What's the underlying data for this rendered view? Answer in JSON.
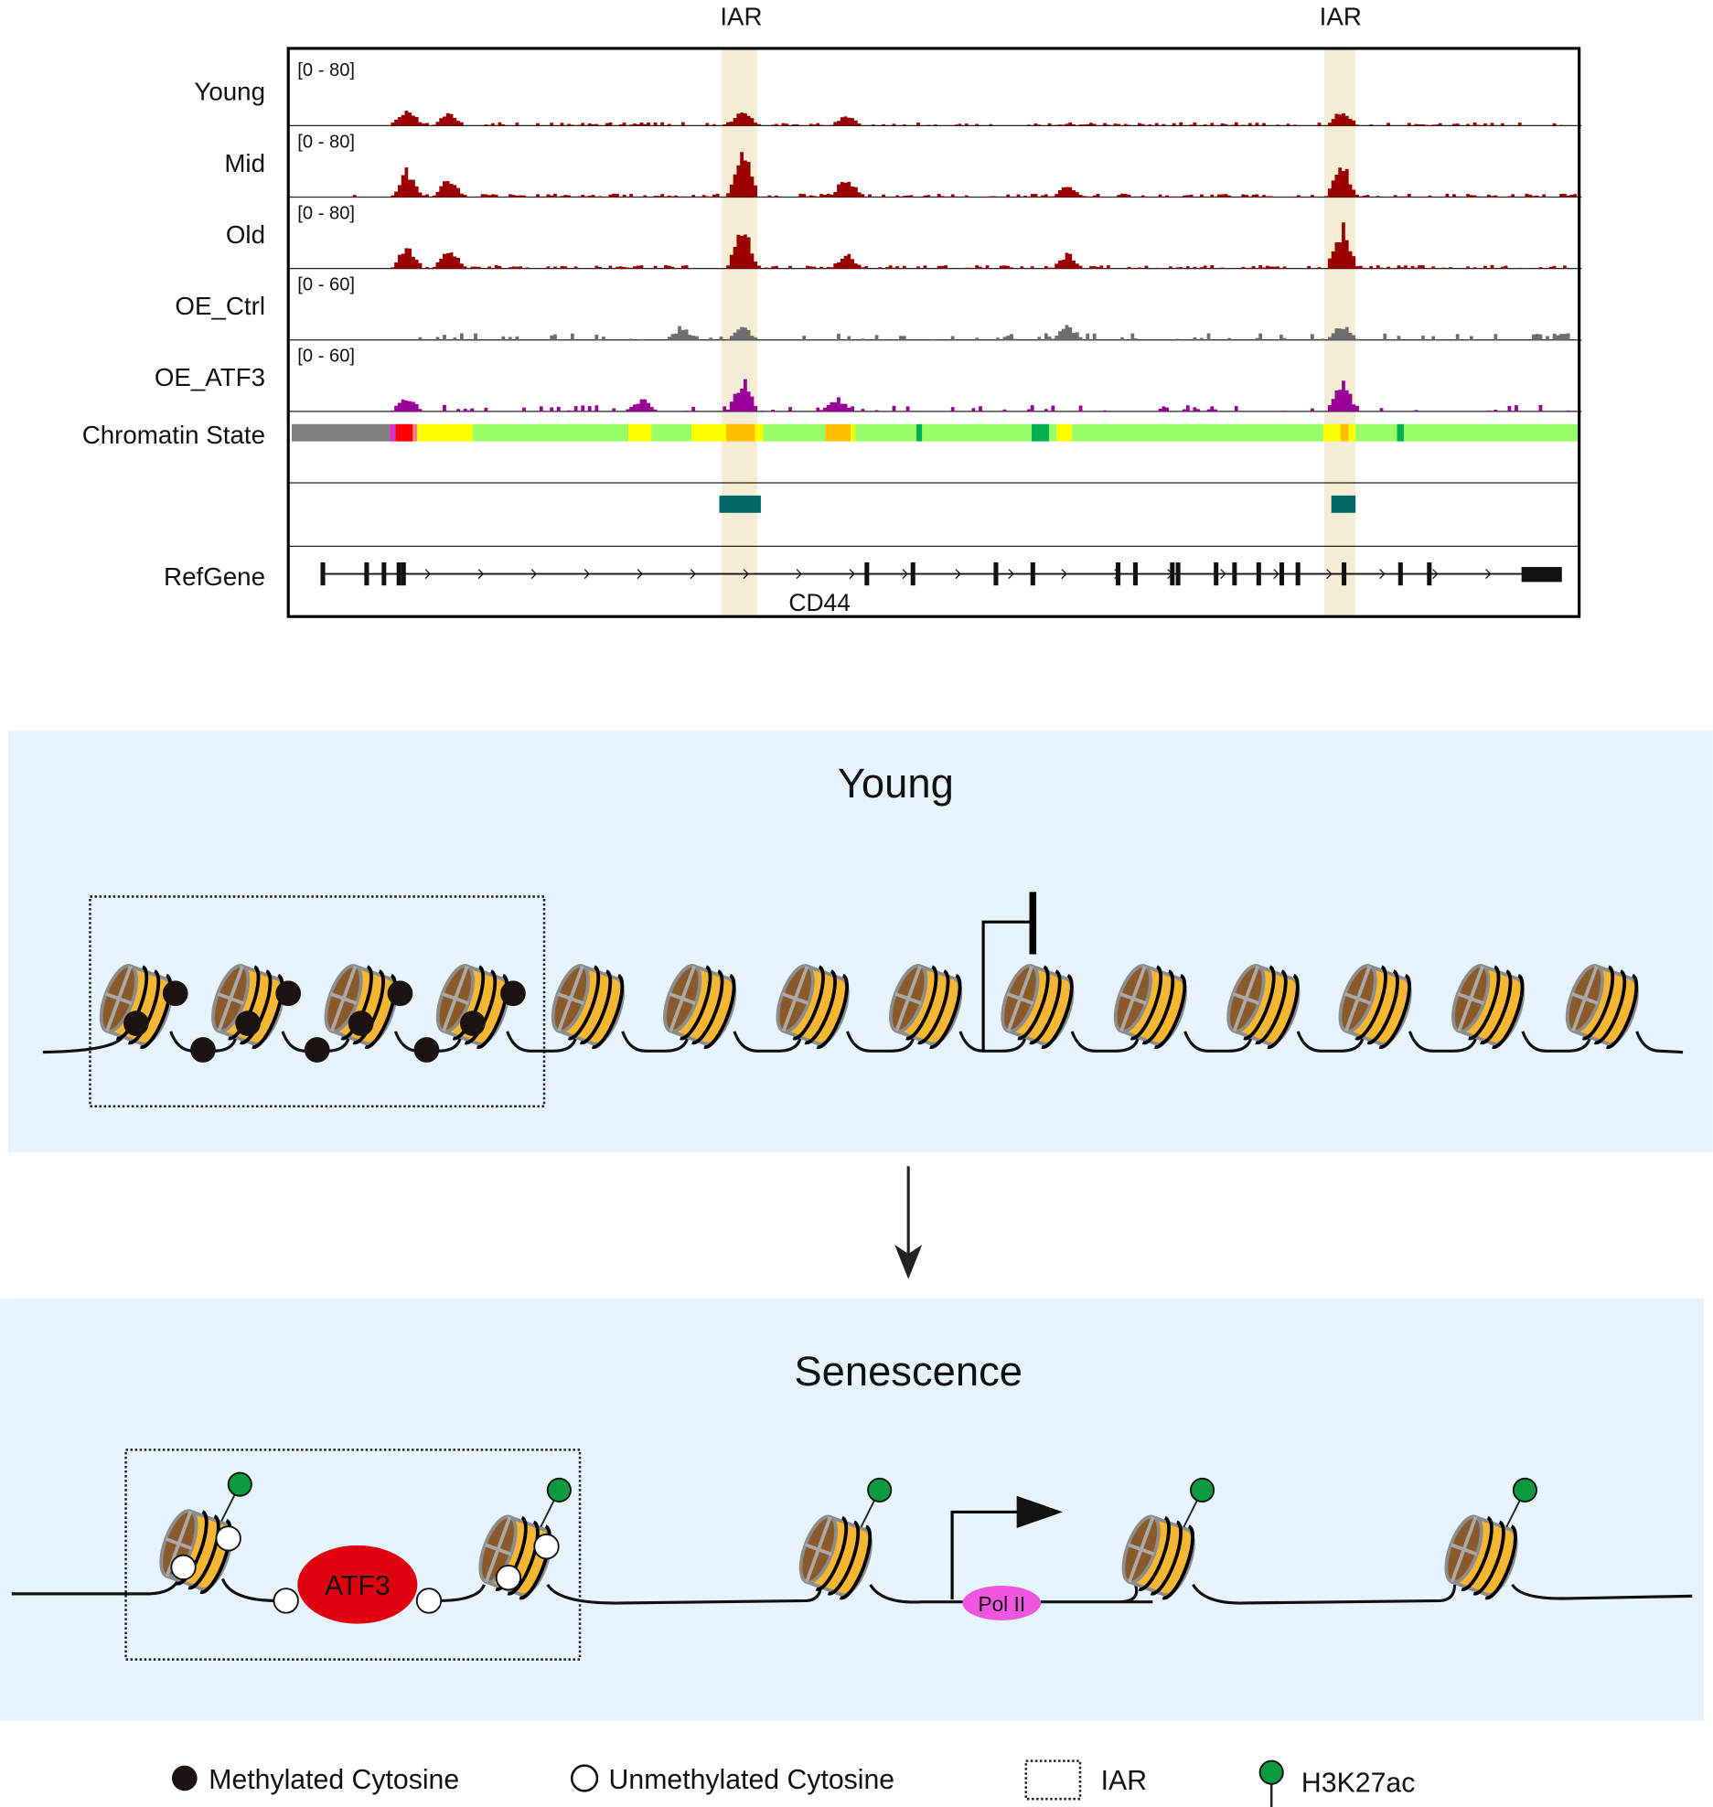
{
  "browser": {
    "iar_label": "IAR",
    "tracks": [
      {
        "name": "Young",
        "range": "[0 - 80]",
        "color": "#9b0000"
      },
      {
        "name": "Mid",
        "range": "[0 - 80]",
        "color": "#9b0000"
      },
      {
        "name": "Old",
        "range": "[0 - 80]",
        "color": "#9b0000"
      },
      {
        "name": "OE_Ctrl",
        "range": "[0 - 60]",
        "color": "#6e6e6e"
      },
      {
        "name": "OE_ATF3",
        "range": "[0 - 60]",
        "color": "#990099"
      }
    ],
    "chromatin_label": "Chromatin State",
    "refgene_label": "RefGene",
    "gene_name": "CD44",
    "highlight_color": "#f5edd4",
    "iar_box_color": "#006666"
  },
  "young_panel": {
    "title": "Young",
    "background": "#e6f4fd"
  },
  "senescence_panel": {
    "title": "Senescence",
    "background": "#e6f4fd",
    "atf3_label": "ATF3",
    "polii_label": "Pol II",
    "atf3_color": "#e00010",
    "polii_color": "#f057e0"
  },
  "legend": {
    "methylated": "Methylated Cytosine",
    "unmethylated": "Unmethylated Cytosine",
    "iar": "IAR",
    "h3k27ac": "H3K27ac",
    "h3k27ac_color": "#0a9a40"
  }
}
